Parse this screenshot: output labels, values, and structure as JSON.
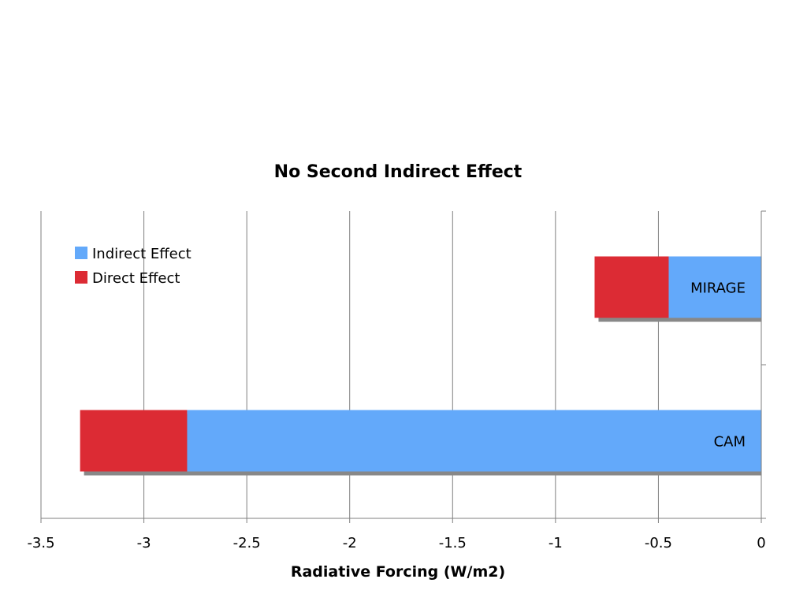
{
  "chart_data": {
    "type": "bar",
    "orientation": "horizontal",
    "stacked": true,
    "title": "No Second Indirect Effect",
    "xlabel": "Radiative Forcing (W/m2)",
    "ylabel": "",
    "xlim": [
      -3.5,
      0
    ],
    "x_ticks": [
      "-3.5",
      "-3",
      "-2.5",
      "-2",
      "-1.5",
      "-1",
      "-0.5",
      "0"
    ],
    "grid": true,
    "legend_position": "top-left",
    "categories": [
      "MIRAGE",
      "CAM"
    ],
    "series": [
      {
        "name": "Indirect Effect",
        "color": "#63a9fa",
        "values": [
          -0.45,
          -2.79
        ]
      },
      {
        "name": "Direct Effect",
        "color": "#dc2b34",
        "values": [
          -0.36,
          -0.52
        ]
      }
    ]
  }
}
